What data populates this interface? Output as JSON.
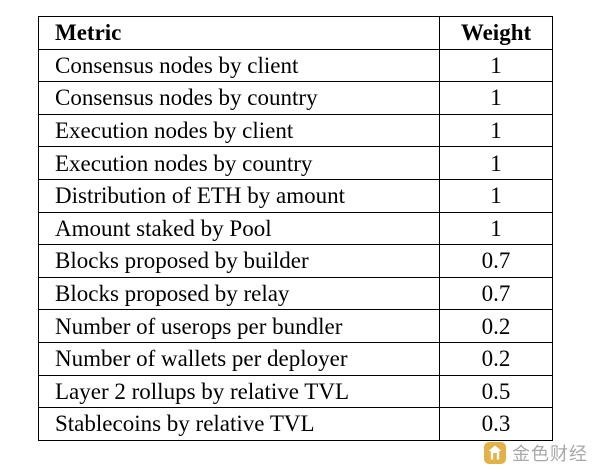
{
  "table": {
    "headers": {
      "metric": "Metric",
      "weight": "Weight"
    },
    "rows": [
      {
        "metric": "Consensus nodes by client",
        "weight": "1"
      },
      {
        "metric": "Consensus nodes by country",
        "weight": "1"
      },
      {
        "metric": "Execution nodes by client",
        "weight": "1"
      },
      {
        "metric": "Execution nodes by country",
        "weight": "1"
      },
      {
        "metric": "Distribution of ETH by amount",
        "weight": "1"
      },
      {
        "metric": "Amount staked by Pool",
        "weight": "1"
      },
      {
        "metric": "Blocks proposed by builder",
        "weight": "0.7"
      },
      {
        "metric": "Blocks proposed by relay",
        "weight": "0.7"
      },
      {
        "metric": "Number of userops per bundler",
        "weight": "0.2"
      },
      {
        "metric": "Number of wallets per deployer",
        "weight": "0.2"
      },
      {
        "metric": "Layer 2 rollups by relative TVL",
        "weight": "0.5"
      },
      {
        "metric": "Stablecoins by relative TVL",
        "weight": "0.3"
      }
    ]
  },
  "watermark": {
    "text": "金色财经",
    "logo_icon": "golden-finance-logo-icon",
    "logo_color": "#e0a42a"
  }
}
